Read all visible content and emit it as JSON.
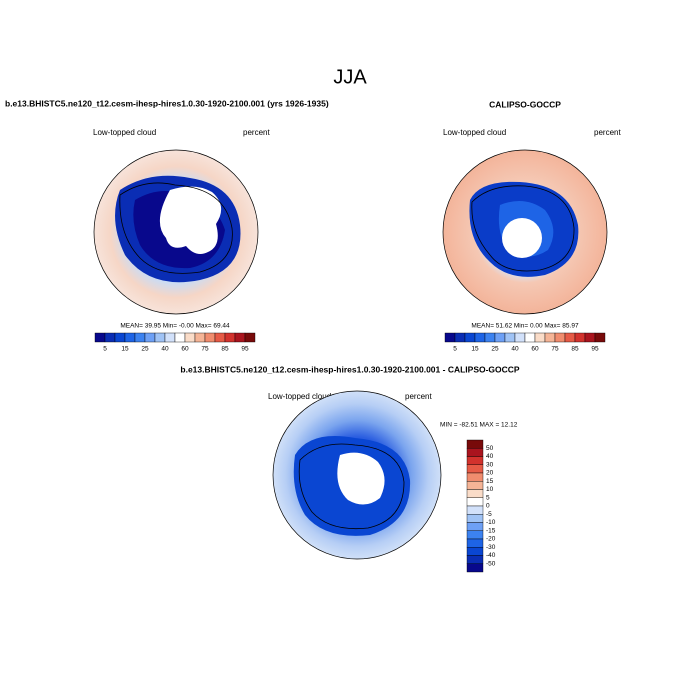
{
  "title": "JJA",
  "panels": [
    {
      "title": "b.e13.BHISTC5.ne120_t12.cesm-ihesp-hires1.0.30-1920-2100.001 (yrs 1926-1935)",
      "left_label": "Low-topped cloud",
      "right_label": "percent",
      "stats": "MEAN=  39.95  Min=  -0.00  Max=  69.44",
      "colorbar_labels": [
        5,
        15,
        25,
        40,
        60,
        75,
        85,
        95
      ]
    },
    {
      "title": "CALIPSO-GOCCP",
      "left_label": "Low-topped cloud",
      "right_label": "percent",
      "stats": "MEAN=  51.62  Min=   0.00  Max=  85.97",
      "colorbar_labels": [
        5,
        15,
        25,
        40,
        60,
        75,
        85,
        95
      ]
    },
    {
      "title": "b.e13.BHISTC5.ne120_t12.cesm-ihesp-hires1.0.30-1920-2100.001 - CALIPSO-GOCCP",
      "left_label": "Low-topped cloud",
      "right_label": "percent",
      "stats": "MIN = -82.51 MAX =  12.12",
      "colorbar_labels": [
        50,
        40,
        30,
        20,
        15,
        10,
        5,
        0,
        -5,
        -10,
        -15,
        -20,
        -30,
        -40,
        -50
      ]
    }
  ]
}
